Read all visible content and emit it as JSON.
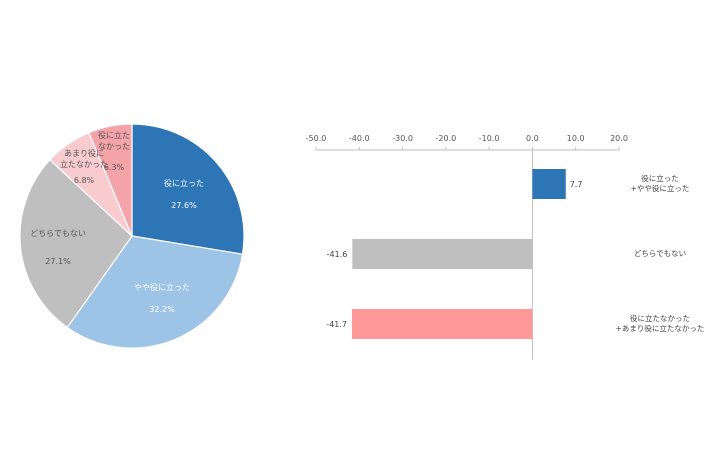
{
  "chart_data": [
    {
      "type": "pie",
      "slices": [
        {
          "label": "役に立った",
          "value_label": "27.6%",
          "value": 27.6,
          "color": "#2E75B6"
        },
        {
          "label": "やや役に立った",
          "value_label": "32.2%",
          "value": 32.2,
          "color": "#9DC3E6"
        },
        {
          "label": "どちらでもない",
          "value_label": "27.1%",
          "value": 27.1,
          "color": "#BFBFBF"
        },
        {
          "label_lines": [
            "あまり役に",
            "立たなかった"
          ],
          "value_label": "6.8%",
          "value": 6.8,
          "color": "#F8CBCF"
        },
        {
          "label_lines": [
            "役に立た",
            "なかった"
          ],
          "value_label": "6.3%",
          "value": 6.3,
          "color": "#F4A3A8"
        }
      ]
    },
    {
      "type": "bar",
      "orientation": "horizontal",
      "xlim": [
        -50,
        20
      ],
      "ticks": [
        "-50.0",
        "-40.0",
        "-30.0",
        "-20.0",
        "-10.0",
        "0.0",
        "10.0",
        "20.0"
      ],
      "categories": [
        {
          "lines": [
            "役に立った",
            "+やや役に立った"
          ]
        },
        {
          "lines": [
            "どちらでもない"
          ]
        },
        {
          "lines": [
            "役に立たなかった",
            "+あまり役に立たなかった"
          ]
        }
      ],
      "values": [
        7.7,
        -41.6,
        -41.7
      ],
      "value_labels": [
        "7.7",
        "-41.6",
        "-41.7"
      ],
      "colors": [
        "#2E75B6",
        "#BFBFBF",
        "#FF9999"
      ]
    }
  ]
}
